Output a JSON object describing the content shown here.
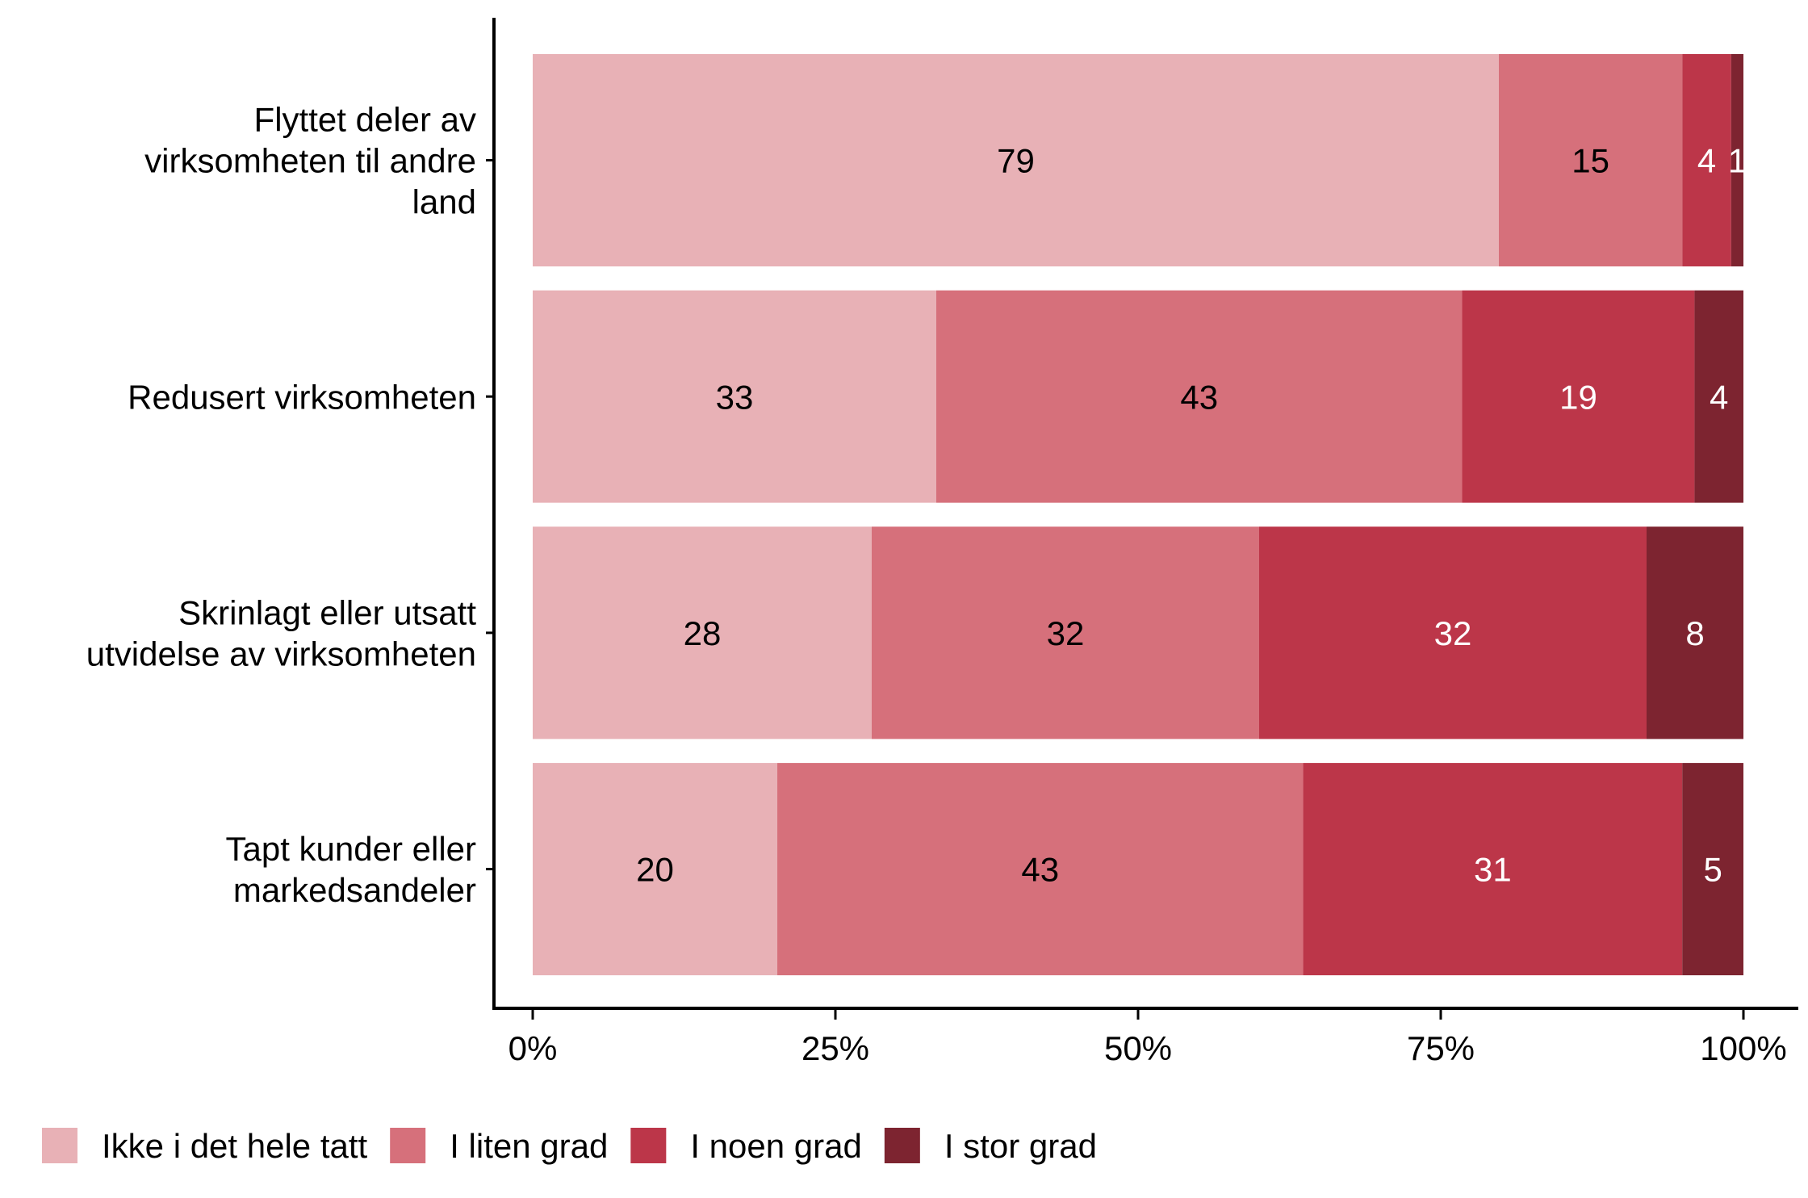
{
  "chart_data": {
    "type": "bar",
    "orientation": "horizontal",
    "stacked": true,
    "normalized": true,
    "categories": [
      [
        "Flyttet deler av",
        "virksomheten til andre",
        "land"
      ],
      [
        "Redusert virksomheten"
      ],
      [
        "Skrinlagt eller utsatt",
        "utvidelse av virksomheten"
      ],
      [
        "Tapt kunder eller",
        "markedsandeler"
      ]
    ],
    "series": [
      {
        "name": "Ikke i det hele tatt",
        "color": "#E8B1B6",
        "label_color": "#000000",
        "values": [
          79,
          33,
          28,
          20
        ]
      },
      {
        "name": "I liten grad",
        "color": "#D6707B",
        "label_color": "#000000",
        "values": [
          15,
          43,
          32,
          43
        ]
      },
      {
        "name": "I noen grad",
        "color": "#BC3649",
        "label_color": "#FFFFFF",
        "values": [
          4,
          19,
          32,
          31
        ]
      },
      {
        "name": "I stor grad",
        "color": "#7D2430",
        "label_color": "#FFFFFF",
        "values": [
          1,
          4,
          8,
          5
        ]
      }
    ],
    "xticks": [
      "0%",
      "25%",
      "50%",
      "75%",
      "100%"
    ],
    "xlim": [
      0,
      100
    ],
    "title": "",
    "xlabel": "",
    "ylabel": "",
    "grid": false,
    "legend_position": "bottom-left"
  }
}
